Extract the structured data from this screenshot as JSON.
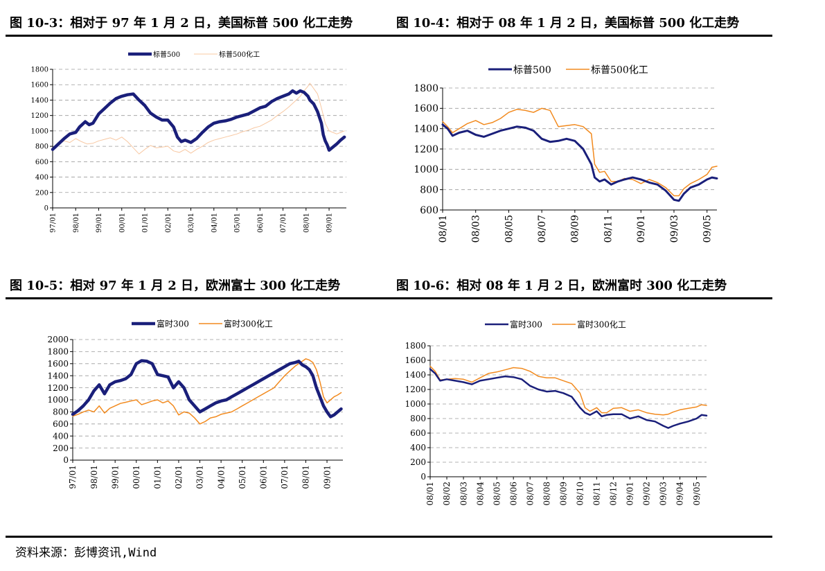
{
  "colors": {
    "navy": "#1a1f7a",
    "orange": "#f28a1e",
    "light_orange": "#f8c8a2",
    "grid": "#9a9a9a"
  },
  "source": "资料来源：彭博资讯,Wind",
  "chart_data": [
    {
      "id": "c1",
      "type": "line",
      "title": "图 10-3：相对于 97 年 1 月 2 日，美国标普 500 化工走势",
      "ylim": [
        0,
        1800
      ],
      "yticks": [
        0,
        200,
        400,
        600,
        800,
        1000,
        1200,
        1400,
        1600,
        1800
      ],
      "x_range": [
        0,
        153
      ],
      "xticks": [
        {
          "label": "97/01",
          "x": 0
        },
        {
          "label": "98/01",
          "x": 12
        },
        {
          "label": "99/01",
          "x": 24
        },
        {
          "label": "00/01",
          "x": 36
        },
        {
          "label": "01/01",
          "x": 48
        },
        {
          "label": "02/01",
          "x": 60
        },
        {
          "label": "03/01",
          "x": 72
        },
        {
          "label": "04/01",
          "x": 84
        },
        {
          "label": "05/01",
          "x": 96
        },
        {
          "label": "06/01",
          "x": 108
        },
        {
          "label": "07/01",
          "x": 120
        },
        {
          "label": "08/01",
          "x": 132
        },
        {
          "label": "09/01",
          "x": 144
        }
      ],
      "legend_position": "top-center",
      "series": [
        {
          "name": "标普500",
          "color": "#1a1f7a",
          "width": 4.5,
          "x": [
            0,
            3,
            6,
            9,
            12,
            14,
            17,
            19,
            21,
            24,
            27,
            30,
            33,
            36,
            39,
            42,
            45,
            48,
            51,
            54,
            57,
            60,
            63,
            65,
            67,
            69,
            72,
            75,
            78,
            81,
            84,
            87,
            90,
            93,
            96,
            99,
            102,
            105,
            108,
            111,
            114,
            117,
            120,
            123,
            125,
            127,
            129,
            131,
            133,
            134,
            136,
            138,
            140,
            141,
            142,
            143,
            144,
            146,
            148,
            150,
            152
          ],
          "y": [
            760,
            830,
            900,
            960,
            980,
            1050,
            1120,
            1080,
            1100,
            1220,
            1290,
            1360,
            1420,
            1450,
            1470,
            1480,
            1400,
            1330,
            1230,
            1180,
            1140,
            1140,
            1050,
            920,
            860,
            880,
            850,
            900,
            980,
            1050,
            1100,
            1120,
            1130,
            1150,
            1180,
            1200,
            1220,
            1260,
            1300,
            1320,
            1380,
            1420,
            1450,
            1480,
            1520,
            1490,
            1520,
            1500,
            1450,
            1400,
            1350,
            1250,
            1100,
            950,
            870,
            820,
            750,
            790,
            830,
            880,
            920
          ]
        },
        {
          "name": "标普500化工",
          "color": "#f8c8a2",
          "width": 1,
          "x": [
            0,
            3,
            6,
            9,
            12,
            15,
            18,
            21,
            24,
            27,
            30,
            33,
            36,
            39,
            42,
            45,
            48,
            51,
            54,
            57,
            60,
            63,
            66,
            69,
            72,
            75,
            78,
            81,
            84,
            87,
            90,
            93,
            96,
            99,
            102,
            105,
            108,
            111,
            114,
            117,
            120,
            123,
            126,
            129,
            131,
            133,
            134,
            136,
            138,
            140,
            142,
            144,
            146,
            148,
            150,
            152
          ],
          "y": [
            780,
            830,
            870,
            850,
            900,
            860,
            830,
            840,
            870,
            890,
            910,
            880,
            920,
            860,
            780,
            700,
            760,
            810,
            780,
            790,
            800,
            740,
            720,
            760,
            710,
            760,
            800,
            850,
            880,
            900,
            920,
            940,
            960,
            990,
            1010,
            1040,
            1060,
            1100,
            1140,
            1200,
            1250,
            1310,
            1380,
            1450,
            1520,
            1580,
            1620,
            1550,
            1480,
            1300,
            1100,
            1000,
            980,
            960,
            980,
            1000
          ]
        }
      ]
    },
    {
      "id": "c2",
      "type": "line",
      "title": "图 10-4：相对于 08 年 1 月 2 日，美国标普 500 化工走势",
      "ylim": [
        600,
        1800
      ],
      "yticks": [
        600,
        800,
        1000,
        1200,
        1400,
        1600,
        1800
      ],
      "x_range": [
        0,
        16.6
      ],
      "xticks": [
        {
          "label": "08/01",
          "x": 0
        },
        {
          "label": "08/03",
          "x": 2
        },
        {
          "label": "08/05",
          "x": 4
        },
        {
          "label": "08/07",
          "x": 6
        },
        {
          "label": "08/09",
          "x": 8
        },
        {
          "label": "08/11",
          "x": 10
        },
        {
          "label": "09/01",
          "x": 12
        },
        {
          "label": "09/03",
          "x": 14
        },
        {
          "label": "09/05",
          "x": 16
        }
      ],
      "legend_position": "top-center",
      "series": [
        {
          "name": "标普500",
          "color": "#1a1f7a",
          "width": 3,
          "x": [
            0,
            0.3,
            0.6,
            1,
            1.5,
            2,
            2.5,
            3,
            3.5,
            4,
            4.5,
            5,
            5.5,
            6,
            6.5,
            7,
            7.5,
            8,
            8.5,
            9,
            9.2,
            9.5,
            9.8,
            10.2,
            10.6,
            11,
            11.5,
            12,
            12.5,
            13,
            13.5,
            14,
            14.3,
            14.6,
            15,
            15.5,
            16,
            16.3,
            16.6
          ],
          "y": [
            1440,
            1400,
            1330,
            1360,
            1380,
            1340,
            1320,
            1350,
            1380,
            1400,
            1420,
            1410,
            1380,
            1300,
            1270,
            1280,
            1300,
            1280,
            1200,
            1050,
            920,
            880,
            900,
            850,
            880,
            900,
            920,
            900,
            870,
            850,
            790,
            700,
            690,
            760,
            820,
            850,
            900,
            920,
            910
          ]
        },
        {
          "name": "标普500化工",
          "color": "#f28a1e",
          "width": 1.5,
          "x": [
            0,
            0.3,
            0.6,
            1,
            1.5,
            2,
            2.5,
            3,
            3.5,
            4,
            4.5,
            5,
            5.5,
            6,
            6.5,
            7,
            7.5,
            8,
            8.5,
            9,
            9.2,
            9.5,
            9.8,
            10.2,
            10.6,
            11,
            11.5,
            12,
            12.5,
            13,
            13.5,
            14,
            14.3,
            14.6,
            15,
            15.5,
            16,
            16.3,
            16.6
          ],
          "y": [
            1470,
            1420,
            1360,
            1400,
            1450,
            1480,
            1440,
            1460,
            1500,
            1560,
            1590,
            1580,
            1560,
            1600,
            1580,
            1420,
            1430,
            1440,
            1420,
            1350,
            1050,
            970,
            980,
            880,
            880,
            910,
            900,
            860,
            900,
            870,
            820,
            740,
            740,
            810,
            860,
            900,
            950,
            1020,
            1030
          ]
        }
      ]
    },
    {
      "id": "c3",
      "type": "line",
      "title": "图 10-5：相对 97 年 1 月 2 日，欧洲富士 300 化工走势",
      "ylim": [
        0,
        2000
      ],
      "yticks": [
        0,
        200,
        400,
        600,
        800,
        1000,
        1200,
        1400,
        1600,
        1800,
        2000
      ],
      "x_range": [
        0,
        153
      ],
      "xticks": [
        {
          "label": "97/01",
          "x": 0
        },
        {
          "label": "98/01",
          "x": 12
        },
        {
          "label": "99/01",
          "x": 24
        },
        {
          "label": "00/01",
          "x": 36
        },
        {
          "label": "01/01",
          "x": 48
        },
        {
          "label": "02/01",
          "x": 60
        },
        {
          "label": "03/01",
          "x": 72
        },
        {
          "label": "04/01",
          "x": 84
        },
        {
          "label": "05/01",
          "x": 96
        },
        {
          "label": "06/01",
          "x": 108
        },
        {
          "label": "07/01",
          "x": 120
        },
        {
          "label": "08/01",
          "x": 132
        },
        {
          "label": "09/01",
          "x": 144
        }
      ],
      "legend_position": "top-center",
      "series": [
        {
          "name": "富时300",
          "color": "#1a1f7a",
          "width": 4.5,
          "x": [
            0,
            3,
            6,
            9,
            12,
            15,
            18,
            21,
            24,
            27,
            30,
            33,
            36,
            39,
            42,
            45,
            48,
            51,
            54,
            57,
            60,
            63,
            66,
            69,
            72,
            75,
            78,
            81,
            84,
            87,
            90,
            93,
            96,
            99,
            102,
            105,
            108,
            111,
            114,
            117,
            120,
            123,
            126,
            128,
            130,
            132,
            134,
            136,
            138,
            140,
            142,
            144,
            146,
            148,
            150,
            152
          ],
          "y": [
            760,
            820,
            900,
            1000,
            1150,
            1250,
            1100,
            1250,
            1300,
            1320,
            1350,
            1420,
            1600,
            1650,
            1640,
            1600,
            1420,
            1400,
            1380,
            1200,
            1300,
            1200,
            1000,
            900,
            800,
            850,
            900,
            950,
            980,
            1000,
            1050,
            1100,
            1150,
            1200,
            1250,
            1300,
            1350,
            1400,
            1450,
            1500,
            1550,
            1600,
            1620,
            1640,
            1580,
            1550,
            1500,
            1400,
            1200,
            1050,
            900,
            800,
            720,
            750,
            800,
            850
          ]
        },
        {
          "name": "富时300化工",
          "color": "#f28a1e",
          "width": 1.5,
          "x": [
            0,
            3,
            6,
            9,
            12,
            15,
            18,
            21,
            24,
            27,
            30,
            33,
            36,
            39,
            42,
            45,
            48,
            51,
            54,
            57,
            60,
            63,
            66,
            69,
            72,
            75,
            78,
            81,
            84,
            87,
            90,
            93,
            96,
            99,
            102,
            105,
            108,
            111,
            114,
            117,
            120,
            123,
            126,
            128,
            130,
            132,
            134,
            136,
            138,
            140,
            142,
            144,
            146,
            148,
            150,
            152
          ],
          "y": [
            730,
            760,
            800,
            830,
            800,
            900,
            780,
            860,
            900,
            940,
            960,
            980,
            1000,
            920,
            950,
            980,
            1000,
            950,
            980,
            900,
            750,
            800,
            780,
            700,
            600,
            640,
            700,
            720,
            760,
            780,
            800,
            850,
            900,
            950,
            1000,
            1050,
            1100,
            1150,
            1200,
            1300,
            1400,
            1480,
            1560,
            1600,
            1640,
            1680,
            1660,
            1620,
            1500,
            1300,
            1050,
            950,
            1000,
            1050,
            1080,
            1120
          ]
        }
      ]
    },
    {
      "id": "c4",
      "type": "line",
      "title": "图 10-6：相对 08 年 1 月 2 日，欧洲富时 300 化工走势",
      "ylim": [
        0,
        1800
      ],
      "yticks": [
        0,
        200,
        400,
        600,
        800,
        1000,
        1200,
        1400,
        1600,
        1800
      ],
      "x_range": [
        0,
        16.6
      ],
      "xticks": [
        {
          "label": "08/01",
          "x": 0
        },
        {
          "label": "08/02",
          "x": 1
        },
        {
          "label": "08/03",
          "x": 2
        },
        {
          "label": "08/04",
          "x": 3
        },
        {
          "label": "08/05",
          "x": 4
        },
        {
          "label": "08/06",
          "x": 5
        },
        {
          "label": "08/07",
          "x": 6
        },
        {
          "label": "08/08",
          "x": 7
        },
        {
          "label": "08/09",
          "x": 8
        },
        {
          "label": "08/10",
          "x": 9
        },
        {
          "label": "08/11",
          "x": 10
        },
        {
          "label": "08/12",
          "x": 11
        },
        {
          "label": "09/01",
          "x": 12
        },
        {
          "label": "09/02",
          "x": 13
        },
        {
          "label": "09/03",
          "x": 14
        },
        {
          "label": "09/04",
          "x": 15
        },
        {
          "label": "09/05",
          "x": 16
        }
      ],
      "legend_position": "top-center",
      "series": [
        {
          "name": "富时300",
          "color": "#1a1f7a",
          "width": 2.5,
          "x": [
            0,
            0.3,
            0.6,
            1,
            1.5,
            2,
            2.5,
            3,
            3.5,
            4,
            4.5,
            5,
            5.5,
            6,
            6.5,
            7,
            7.5,
            8,
            8.5,
            9,
            9.3,
            9.6,
            10,
            10.3,
            10.6,
            11,
            11.5,
            12,
            12.5,
            13,
            13.5,
            14,
            14.3,
            14.6,
            15,
            15.5,
            16,
            16.3,
            16.6
          ],
          "y": [
            1480,
            1420,
            1320,
            1340,
            1320,
            1300,
            1270,
            1320,
            1340,
            1360,
            1380,
            1370,
            1340,
            1250,
            1200,
            1170,
            1180,
            1150,
            1100,
            950,
            880,
            850,
            900,
            830,
            850,
            860,
            860,
            800,
            830,
            780,
            760,
            700,
            670,
            700,
            730,
            760,
            800,
            850,
            840
          ]
        },
        {
          "name": "富时300化工",
          "color": "#f28a1e",
          "width": 1.5,
          "x": [
            0,
            0.3,
            0.6,
            1,
            1.5,
            2,
            2.5,
            3,
            3.5,
            4,
            4.5,
            5,
            5.5,
            6,
            6.5,
            7,
            7.5,
            8,
            8.5,
            9,
            9.3,
            9.6,
            10,
            10.3,
            10.6,
            11,
            11.5,
            12,
            12.5,
            13,
            13.5,
            14,
            14.3,
            14.6,
            15,
            15.5,
            16,
            16.3,
            16.6
          ],
          "y": [
            1520,
            1450,
            1330,
            1340,
            1350,
            1340,
            1300,
            1360,
            1420,
            1440,
            1470,
            1500,
            1490,
            1450,
            1380,
            1360,
            1360,
            1320,
            1280,
            1150,
            950,
            900,
            950,
            880,
            880,
            940,
            950,
            900,
            920,
            880,
            860,
            850,
            860,
            890,
            920,
            940,
            960,
            990,
            980
          ]
        }
      ]
    }
  ]
}
